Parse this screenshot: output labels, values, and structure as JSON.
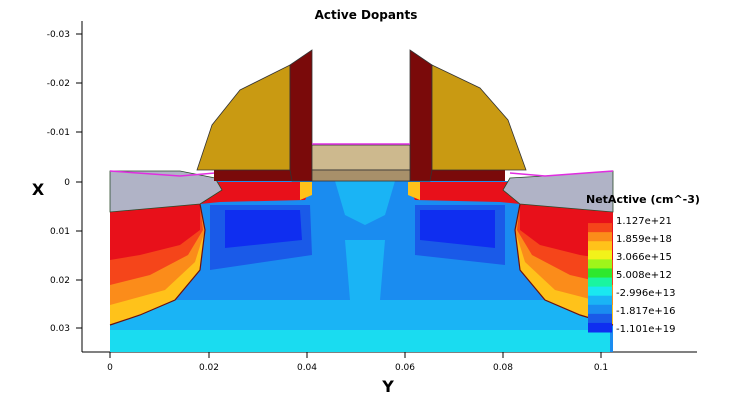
{
  "plot": {
    "title": "Active Dopants",
    "x_axis_label": "X",
    "y_axis_label": "Y",
    "x_ticks": [
      "-0.03",
      "-0.02",
      "-0.01",
      "0",
      "0.01",
      "0.02",
      "0.03"
    ],
    "y_ticks": [
      "0",
      "0.02",
      "0.04",
      "0.06",
      "0.08",
      "0.1"
    ]
  },
  "legend": {
    "title": "NetActive (cm^-3)",
    "labels": [
      "1.127e+21",
      "1.859e+18",
      "3.066e+15",
      "5.008e+12",
      "-2.996e+13",
      "-1.817e+16",
      "-1.101e+19"
    ],
    "colors": [
      "#e8101a",
      "#f5451a",
      "#fb8c1a",
      "#ffc21a",
      "#f2f21a",
      "#9ef51a",
      "#2ee82e",
      "#1af5a0",
      "#1ae8f0",
      "#1ab4f5",
      "#1a8cf0",
      "#1a5ae8",
      "#0f2ef0"
    ]
  },
  "materials": {
    "spacer_color": "#c99a12",
    "gate_oxide_color": "#7a0a0a",
    "poly_color": "#cdb98e",
    "poly_base_color": "#a8906a",
    "field_oxide_color": "#b0b3c6",
    "outline_color": "#e02ee0"
  }
}
